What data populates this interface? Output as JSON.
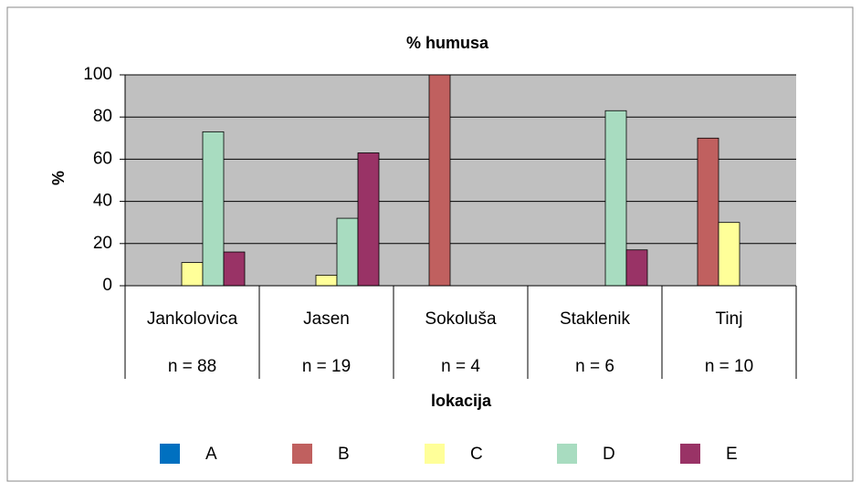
{
  "chart_data": {
    "type": "bar",
    "title": "% humusa",
    "ylabel": "%",
    "xlabel": "lokacija",
    "categories": [
      "Jankolovica",
      "Jasen",
      "Sokoluša",
      "Staklenik",
      "Tinj"
    ],
    "sample_sizes": [
      "n = 88",
      "n = 19",
      "n = 4",
      "n = 6",
      "n = 10"
    ],
    "series": [
      {
        "name": "A",
        "color": "#0070c0",
        "values": [
          0,
          0,
          0,
          0,
          0
        ]
      },
      {
        "name": "B",
        "color": "#c0605f",
        "values": [
          0,
          0,
          100,
          0,
          70
        ]
      },
      {
        "name": "C",
        "color": "#ffff99",
        "values": [
          11,
          5,
          0,
          0,
          30
        ]
      },
      {
        "name": "D",
        "color": "#a8dcc0",
        "values": [
          73,
          32,
          0,
          83,
          0
        ]
      },
      {
        "name": "E",
        "color": "#993366",
        "values": [
          16,
          63,
          0,
          17,
          0
        ]
      }
    ],
    "ylim": [
      0,
      100
    ],
    "yticks": [
      0,
      20,
      40,
      60,
      80,
      100
    ],
    "grid": true,
    "legend": "bottom"
  }
}
